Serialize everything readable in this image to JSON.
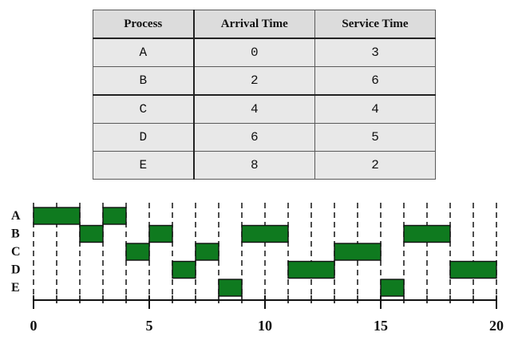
{
  "table": {
    "headers": [
      "Process",
      "Arrival Time",
      "Service Time"
    ],
    "rows": [
      [
        "A",
        "0",
        "3"
      ],
      [
        "B",
        "2",
        "6"
      ],
      [
        "C",
        "4",
        "4"
      ],
      [
        "D",
        "6",
        "5"
      ],
      [
        "E",
        "8",
        "2"
      ]
    ]
  },
  "gantt": {
    "processes": [
      "A",
      "B",
      "C",
      "D",
      "E"
    ],
    "time_range": [
      0,
      20
    ],
    "tick_labels": [
      "0",
      "5",
      "10",
      "15",
      "20"
    ],
    "bar_color": "#0f7a1f",
    "slices": [
      {
        "process": "A",
        "start": 0,
        "end": 2
      },
      {
        "process": "B",
        "start": 2,
        "end": 3
      },
      {
        "process": "A",
        "start": 3,
        "end": 4
      },
      {
        "process": "C",
        "start": 4,
        "end": 5
      },
      {
        "process": "B",
        "start": 5,
        "end": 6
      },
      {
        "process": "D",
        "start": 6,
        "end": 7
      },
      {
        "process": "C",
        "start": 7,
        "end": 8
      },
      {
        "process": "E",
        "start": 8,
        "end": 9
      },
      {
        "process": "B",
        "start": 9,
        "end": 11
      },
      {
        "process": "D",
        "start": 11,
        "end": 13
      },
      {
        "process": "C",
        "start": 13,
        "end": 15
      },
      {
        "process": "E",
        "start": 15,
        "end": 16
      },
      {
        "process": "B",
        "start": 16,
        "end": 18
      },
      {
        "process": "D",
        "start": 18,
        "end": 20
      }
    ]
  }
}
